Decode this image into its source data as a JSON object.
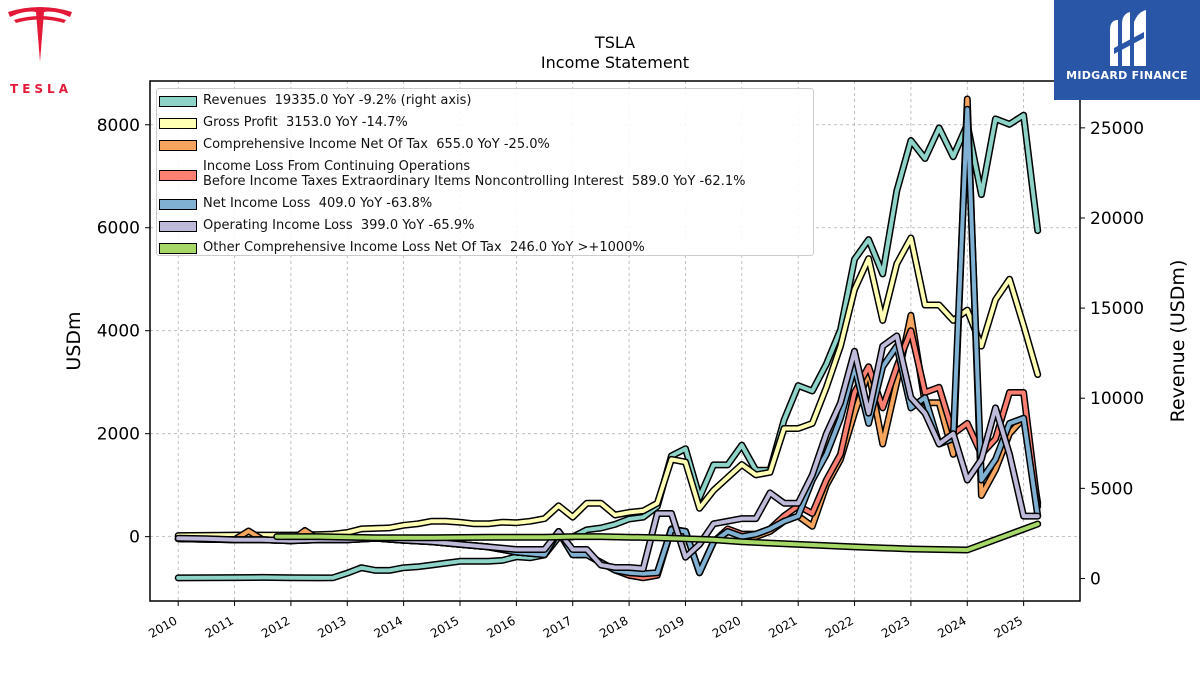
{
  "branding": {
    "left_logo_text": "TESLA",
    "right_logo_text": "MIDGARD FINANCE",
    "right_logo_bg": "#2a56a8",
    "left_logo_color": "#e31937"
  },
  "chart_data": {
    "type": "line",
    "title": "TSLA",
    "subtitle": "Income Statement",
    "ylabel": "USDm",
    "ylabel_right": "Revenue (USDm)",
    "ylim": [
      -1250,
      8850
    ],
    "ylim_right": [
      -1250,
      27600
    ],
    "xlim": [
      2009.5,
      2026.0
    ],
    "yticks": [
      0,
      2000,
      4000,
      6000,
      8000
    ],
    "yticks_right": [
      0,
      5000,
      10000,
      15000,
      20000,
      25000
    ],
    "xticks": [
      2010,
      2011,
      2012,
      2013,
      2014,
      2015,
      2016,
      2017,
      2018,
      2019,
      2020,
      2021,
      2022,
      2023,
      2024,
      2025
    ],
    "grid": true,
    "legend_position": "top-left",
    "series": [
      {
        "name": "Revenues",
        "legend": "Revenues  19335.0 YoY -9.2% (right axis)",
        "color": "#8dd3c7",
        "axis": "right",
        "x": [
          2010.0,
          2010.5,
          2011.0,
          2011.5,
          2012.0,
          2012.5,
          2012.75,
          2013.0,
          2013.25,
          2013.5,
          2013.75,
          2014.0,
          2014.25,
          2014.5,
          2014.75,
          2015.0,
          2015.25,
          2015.5,
          2015.75,
          2016.0,
          2016.25,
          2016.5,
          2016.75,
          2017.0,
          2017.25,
          2017.5,
          2017.75,
          2018.0,
          2018.25,
          2018.5,
          2018.75,
          2019.0,
          2019.25,
          2019.5,
          2019.75,
          2020.0,
          2020.25,
          2020.5,
          2020.75,
          2021.0,
          2021.25,
          2021.5,
          2021.75,
          2022.0,
          2022.25,
          2022.5,
          2022.75,
          2023.0,
          2023.25,
          2023.5,
          2023.75,
          2024.0,
          2024.25,
          2024.5,
          2024.75,
          2025.0,
          2025.25
        ],
        "values": [
          30,
          40,
          50,
          60,
          40,
          30,
          40,
          300,
          600,
          450,
          450,
          600,
          650,
          750,
          850,
          950,
          950,
          950,
          1000,
          1200,
          1150,
          1300,
          2300,
          2300,
          2700,
          2800,
          3000,
          3300,
          3400,
          4000,
          6800,
          7200,
          4500,
          6300,
          6300,
          7400,
          6000,
          6000,
          8800,
          10700,
          10400,
          11900,
          13800,
          17700,
          18800,
          16900,
          21500,
          24300,
          23300,
          25000,
          23400,
          25200,
          21300,
          25500,
          25200,
          25700,
          19300
        ]
      },
      {
        "name": "Gross Profit",
        "legend": "Gross Profit  3153.0 YoY -14.7%",
        "color": "#ffffb3",
        "axis": "left",
        "x": [
          2010.0,
          2010.5,
          2011.0,
          2011.5,
          2012.0,
          2012.5,
          2012.75,
          2013.0,
          2013.25,
          2013.5,
          2013.75,
          2014.0,
          2014.25,
          2014.5,
          2014.75,
          2015.0,
          2015.25,
          2015.5,
          2015.75,
          2016.0,
          2016.25,
          2016.5,
          2016.75,
          2017.0,
          2017.25,
          2017.5,
          2017.75,
          2018.0,
          2018.25,
          2018.5,
          2018.75,
          2019.0,
          2019.25,
          2019.5,
          2019.75,
          2020.0,
          2020.25,
          2020.5,
          2020.75,
          2021.0,
          2021.25,
          2021.5,
          2021.75,
          2022.0,
          2022.25,
          2022.5,
          2022.75,
          2023.0,
          2023.25,
          2023.5,
          2023.75,
          2024.0,
          2024.25,
          2024.5,
          2024.75,
          2025.0,
          2025.25
        ],
        "values": [
          20,
          25,
          30,
          30,
          30,
          40,
          50,
          80,
          150,
          160,
          170,
          220,
          250,
          300,
          300,
          280,
          250,
          250,
          280,
          270,
          300,
          350,
          600,
          380,
          650,
          650,
          420,
          470,
          500,
          650,
          1500,
          1450,
          550,
          900,
          1150,
          1400,
          1200,
          1250,
          2100,
          2100,
          2200,
          2900,
          3700,
          4800,
          5400,
          4200,
          5300,
          5800,
          4500,
          4500,
          4200,
          4400,
          3700,
          4600,
          5000,
          4100,
          3150
        ]
      },
      {
        "name": "Comprehensive Income Net Of Tax",
        "legend": "Comprehensive Income Net Of Tax  655.0 YoY -25.0%",
        "color": "#f5a55d",
        "axis": "left",
        "x": [
          2010.0,
          2010.5,
          2011.0,
          2011.25,
          2011.5,
          2012.0,
          2012.25,
          2012.5,
          2013.0,
          2013.5,
          2014.0,
          2014.5,
          2015.0,
          2015.5,
          2016.0,
          2016.5,
          2016.75,
          2017.0,
          2017.25,
          2017.5,
          2017.75,
          2018.0,
          2018.25,
          2018.5,
          2018.75,
          2019.0,
          2019.25,
          2019.5,
          2019.75,
          2020.0,
          2020.25,
          2020.5,
          2020.75,
          2021.0,
          2021.25,
          2021.5,
          2021.75,
          2022.0,
          2022.25,
          2022.5,
          2022.75,
          2023.0,
          2023.25,
          2023.5,
          2023.75,
          2024.0,
          2024.25,
          2024.5,
          2024.75,
          2025.0,
          2025.25
        ],
        "values": [
          -40,
          -50,
          -60,
          110,
          -60,
          -80,
          120,
          -60,
          -60,
          -30,
          -70,
          -100,
          -150,
          -200,
          -300,
          -350,
          100,
          -350,
          -350,
          -500,
          -650,
          -720,
          -750,
          -700,
          150,
          100,
          -700,
          -100,
          100,
          0,
          0,
          100,
          300,
          400,
          200,
          1000,
          1500,
          2400,
          3200,
          1800,
          3000,
          4300,
          2600,
          2600,
          1600,
          8500,
          800,
          1300,
          2000,
          2300,
          655
        ]
      },
      {
        "name": "Income Loss From Continuing Operations Before Income Taxes Extraordinary Items Noncontrolling Interest",
        "legend": "Income Loss From Continuing Operations\nBefore Income Taxes Extraordinary Items Noncontrolling Interest  589.0 YoY -62.1%",
        "color": "#fb8072",
        "axis": "left",
        "x": [
          2010.0,
          2010.5,
          2011.0,
          2011.5,
          2012.0,
          2012.5,
          2013.0,
          2013.5,
          2014.0,
          2014.5,
          2015.0,
          2015.5,
          2016.0,
          2016.5,
          2016.75,
          2017.0,
          2017.25,
          2017.5,
          2017.75,
          2018.0,
          2018.25,
          2018.5,
          2018.75,
          2019.0,
          2019.25,
          2019.5,
          2019.75,
          2020.0,
          2020.25,
          2020.5,
          2020.75,
          2021.0,
          2021.25,
          2021.5,
          2021.75,
          2022.0,
          2022.25,
          2022.5,
          2022.75,
          2023.0,
          2023.25,
          2023.5,
          2023.75,
          2024.0,
          2024.25,
          2024.5,
          2024.75,
          2025.0,
          2025.25
        ],
        "values": [
          -40,
          -50,
          -60,
          -60,
          -80,
          -60,
          -60,
          -30,
          -70,
          -100,
          -150,
          -200,
          -300,
          -350,
          100,
          -350,
          -350,
          -500,
          -650,
          -750,
          -800,
          -750,
          140,
          100,
          -700,
          -100,
          150,
          50,
          50,
          150,
          400,
          600,
          450,
          1100,
          1600,
          2800,
          3300,
          2500,
          3300,
          4000,
          2800,
          2900,
          2000,
          2200,
          1600,
          1900,
          2800,
          2800,
          589
        ]
      },
      {
        "name": "Net Income Loss",
        "legend": "Net Income Loss  409.0 YoY -63.8%",
        "color": "#80b1d3",
        "axis": "left",
        "x": [
          2010.0,
          2010.5,
          2011.0,
          2011.5,
          2012.0,
          2012.5,
          2013.0,
          2013.5,
          2014.0,
          2014.5,
          2015.0,
          2015.5,
          2016.0,
          2016.5,
          2016.75,
          2017.0,
          2017.25,
          2017.5,
          2017.75,
          2018.0,
          2018.25,
          2018.5,
          2018.75,
          2019.0,
          2019.25,
          2019.5,
          2019.75,
          2020.0,
          2020.25,
          2020.5,
          2020.75,
          2021.0,
          2021.25,
          2021.5,
          2021.75,
          2022.0,
          2022.25,
          2022.5,
          2022.75,
          2023.0,
          2023.25,
          2023.5,
          2023.75,
          2024.0,
          2024.25,
          2024.5,
          2024.75,
          2025.0,
          2025.25
        ],
        "values": [
          -40,
          -50,
          -60,
          -60,
          -80,
          -60,
          -60,
          -30,
          -70,
          -100,
          -150,
          -200,
          -300,
          -350,
          100,
          -350,
          -350,
          -500,
          -650,
          -700,
          -720,
          -700,
          140,
          100,
          -700,
          -100,
          100,
          0,
          50,
          150,
          300,
          400,
          1100,
          1600,
          2300,
          3300,
          2200,
          3300,
          3700,
          2500,
          2700,
          1800,
          1900,
          8300,
          1100,
          1500,
          2200,
          2300,
          409
        ]
      },
      {
        "name": "Operating Income Loss",
        "legend": "Operating Income Loss  399.0 YoY -65.9%",
        "color": "#bebada",
        "axis": "left",
        "x": [
          2010.0,
          2010.5,
          2011.0,
          2011.5,
          2012.0,
          2012.5,
          2013.0,
          2013.5,
          2014.0,
          2014.5,
          2015.0,
          2015.5,
          2016.0,
          2016.5,
          2016.75,
          2017.0,
          2017.25,
          2017.5,
          2017.75,
          2018.0,
          2018.25,
          2018.5,
          2018.75,
          2019.0,
          2019.25,
          2019.5,
          2019.75,
          2020.0,
          2020.25,
          2020.5,
          2020.75,
          2021.0,
          2021.25,
          2021.5,
          2021.75,
          2022.0,
          2022.25,
          2022.5,
          2022.75,
          2023.0,
          2023.25,
          2023.5,
          2023.75,
          2024.0,
          2024.25,
          2024.5,
          2024.75,
          2025.0,
          2025.25
        ],
        "values": [
          -30,
          -40,
          -60,
          -60,
          -80,
          -60,
          -60,
          -30,
          -70,
          -100,
          -150,
          -200,
          -250,
          -250,
          100,
          -250,
          -250,
          -550,
          -600,
          -600,
          -620,
          450,
          450,
          -400,
          -150,
          250,
          300,
          350,
          350,
          850,
          650,
          650,
          1200,
          2000,
          2600,
          3600,
          2400,
          3700,
          3900,
          2700,
          2400,
          1800,
          2000,
          1100,
          1500,
          2500,
          1600,
          399,
          399
        ]
      },
      {
        "name": "Other Comprehensive Income Loss Net Of Tax",
        "legend": "Other Comprehensive Income Loss Net Of Tax  246.0 YoY >+1000%",
        "color": "#a5d867",
        "axis": "left",
        "x": [
          2011.75,
          2012.5,
          2013.5,
          2014.5,
          2015.5,
          2016.5,
          2017.0,
          2017.5,
          2018.0,
          2018.5,
          2019.0,
          2019.5,
          2020.0,
          2021.0,
          2022.0,
          2023.0,
          2024.0,
          2025.25
        ],
        "values": [
          0,
          0,
          -20,
          -20,
          -10,
          -10,
          0,
          0,
          -10,
          -20,
          -40,
          -60,
          -100,
          -150,
          -200,
          -240,
          -260,
          246
        ]
      }
    ]
  }
}
